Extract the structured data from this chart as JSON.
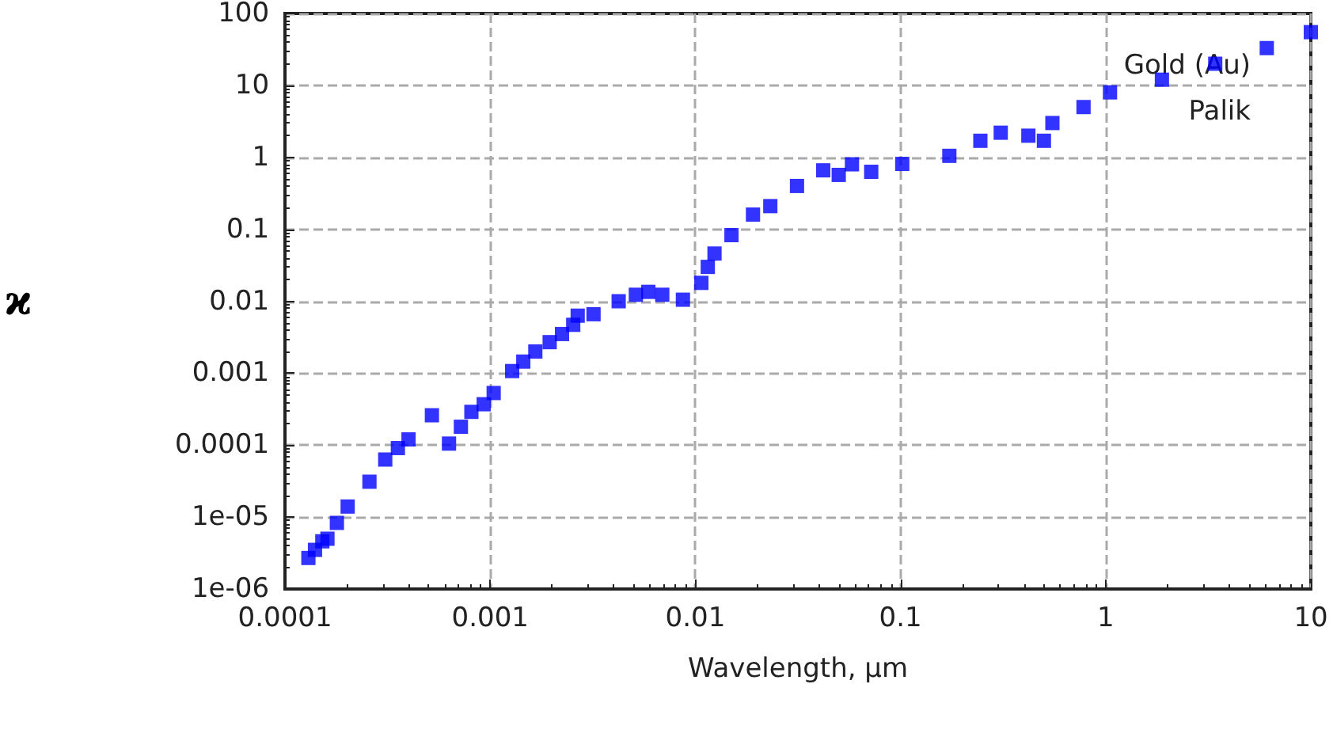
{
  "chart_data": {
    "type": "scatter",
    "xlabel": "Wavelength, µm",
    "ylabel": "ϰ",
    "log": "xy",
    "grid": true,
    "marker": "square",
    "annotations": [
      "Gold (Au)",
      "Palik"
    ],
    "xlim": [
      0.0001,
      10
    ],
    "xticks": [
      0.0001,
      0.001,
      0.01,
      0.1,
      1,
      10
    ],
    "ylim": [
      1e-06,
      100
    ],
    "yticks": [
      {
        "value": 1e-06,
        "label": "1e-06"
      },
      {
        "value": 1e-05,
        "label": "1e-05"
      },
      0.0001,
      0.001,
      0.01,
      0.1,
      1,
      10,
      100
    ],
    "series": [
      {
        "color": "#0000ff",
        "x": [
          0.00013,
          0.00014,
          0.000152,
          0.000161,
          0.000179,
          0.000202,
          0.000258,
          0.000308,
          0.000355,
          0.0004,
          0.00052,
          0.00063,
          0.00072,
          0.00081,
          0.00093,
          0.00104,
          0.00128,
          0.00145,
          0.00166,
          0.00195,
          0.00224,
          0.00254,
          0.00267,
          0.00319,
          0.00423,
          0.00513,
          0.0059,
          0.0069,
          0.0087,
          0.0107,
          0.0115,
          0.0124,
          0.015,
          0.0191,
          0.0232,
          0.0313,
          0.042,
          0.05,
          0.058,
          0.072,
          0.102,
          0.173,
          0.245,
          0.308,
          0.42,
          0.5,
          0.55,
          0.78,
          1.05,
          1.88,
          3.42,
          6.1,
          10
        ],
        "values": [
          2.7e-06,
          3.5e-06,
          4.6e-06,
          5e-06,
          8.3e-06,
          1.4e-05,
          3.1e-05,
          6.3e-05,
          9.1e-05,
          0.00012,
          0.00026,
          0.000105,
          0.00018,
          0.00029,
          0.00037,
          0.00053,
          0.00107,
          0.00145,
          0.002,
          0.0027,
          0.0035,
          0.0047,
          0.0063,
          0.0066,
          0.01,
          0.0123,
          0.0135,
          0.0123,
          0.0105,
          0.018,
          0.03,
          0.046,
          0.083,
          0.16,
          0.21,
          0.4,
          0.66,
          0.57,
          0.8,
          0.63,
          0.81,
          1.05,
          1.7,
          2.2,
          2,
          1.7,
          3,
          5,
          8,
          12,
          20,
          33,
          55
        ]
      }
    ]
  }
}
